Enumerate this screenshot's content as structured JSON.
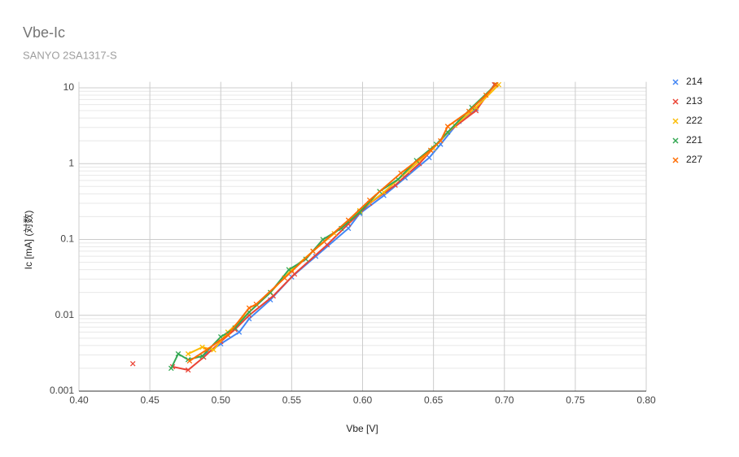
{
  "chart_data": {
    "type": "line",
    "title": "Vbe-Ic",
    "subtitle": "SANYO 2SA1317-S",
    "x_label": "Vbe [V]",
    "y_label": "Ic [mA] (対数)",
    "xlim": [
      0.4,
      0.8
    ],
    "xticks": [
      {
        "value": 0.4,
        "label": "0.40"
      },
      {
        "value": 0.45,
        "label": "0.45"
      },
      {
        "value": 0.5,
        "label": "0.50"
      },
      {
        "value": 0.55,
        "label": "0.55"
      },
      {
        "value": 0.6,
        "label": "0.60"
      },
      {
        "value": 0.65,
        "label": "0.65"
      },
      {
        "value": 0.7,
        "label": "0.70"
      },
      {
        "value": 0.75,
        "label": "0.75"
      },
      {
        "value": 0.8,
        "label": "0.80"
      }
    ],
    "ylim": [
      0.001,
      12
    ],
    "yticks": [
      0.001,
      0.01,
      0.1,
      1,
      10
    ],
    "y_log": true,
    "grid": true,
    "legend": "right",
    "series": [
      {
        "name": "214",
        "color": "#4285f4",
        "x": [
          0.487,
          0.5,
          0.513,
          0.52,
          0.535,
          0.55,
          0.567,
          0.59,
          0.598,
          0.615,
          0.63,
          0.647,
          0.655,
          0.668,
          0.68,
          0.693
        ],
        "values": [
          0.0029,
          0.0042,
          0.006,
          0.009,
          0.016,
          0.032,
          0.06,
          0.14,
          0.22,
          0.38,
          0.65,
          1.2,
          1.8,
          3.6,
          5.3,
          11
        ]
      },
      {
        "name": "213",
        "color": "#ea4335",
        "x": [
          0.438,
          null,
          0.466,
          0.477,
          0.488,
          0.5,
          0.51,
          0.52,
          0.537,
          0.552,
          0.575,
          0.59,
          0.605,
          0.623,
          0.64,
          0.66,
          0.68,
          0.693
        ],
        "values": [
          0.0023,
          null,
          0.0021,
          0.0019,
          0.0028,
          0.0045,
          0.0065,
          0.01,
          0.018,
          0.035,
          0.085,
          0.16,
          0.3,
          0.52,
          1.0,
          2.6,
          5.0,
          11
        ]
      },
      {
        "name": "222",
        "color": "#fbbc04",
        "x": [
          0.477,
          0.487,
          0.495,
          0.505,
          0.52,
          0.535,
          0.55,
          0.565,
          0.58,
          0.598,
          0.615,
          0.632,
          0.65,
          0.665,
          0.68,
          0.696
        ],
        "values": [
          0.0031,
          0.0038,
          0.0035,
          0.006,
          0.011,
          0.02,
          0.04,
          0.07,
          0.12,
          0.24,
          0.42,
          0.8,
          1.6,
          3.2,
          5.5,
          11
        ]
      },
      {
        "name": "221",
        "color": "#34a853",
        "x": [
          0.465,
          0.47,
          0.477,
          0.487,
          0.5,
          0.51,
          0.52,
          0.535,
          0.548,
          0.56,
          0.572,
          0.585,
          0.598,
          0.612,
          0.625,
          0.638,
          0.652,
          0.66,
          0.677,
          0.694
        ],
        "values": [
          0.002,
          0.0031,
          0.0026,
          0.0029,
          0.0052,
          0.0068,
          0.011,
          0.02,
          0.04,
          0.055,
          0.1,
          0.14,
          0.23,
          0.43,
          0.62,
          1.1,
          1.8,
          2.6,
          5.5,
          11
        ]
      },
      {
        "name": "227",
        "color": "#ff6d01",
        "x": [
          0.478,
          0.49,
          0.505,
          0.52,
          0.525,
          0.545,
          0.565,
          0.59,
          0.605,
          0.627,
          0.648,
          0.655,
          0.66,
          0.675,
          0.687,
          0.694
        ],
        "values": [
          0.0025,
          0.0035,
          0.0055,
          0.0125,
          0.014,
          0.031,
          0.07,
          0.18,
          0.33,
          0.75,
          1.5,
          2.0,
          3.1,
          4.9,
          8.0,
          11
        ]
      }
    ]
  }
}
